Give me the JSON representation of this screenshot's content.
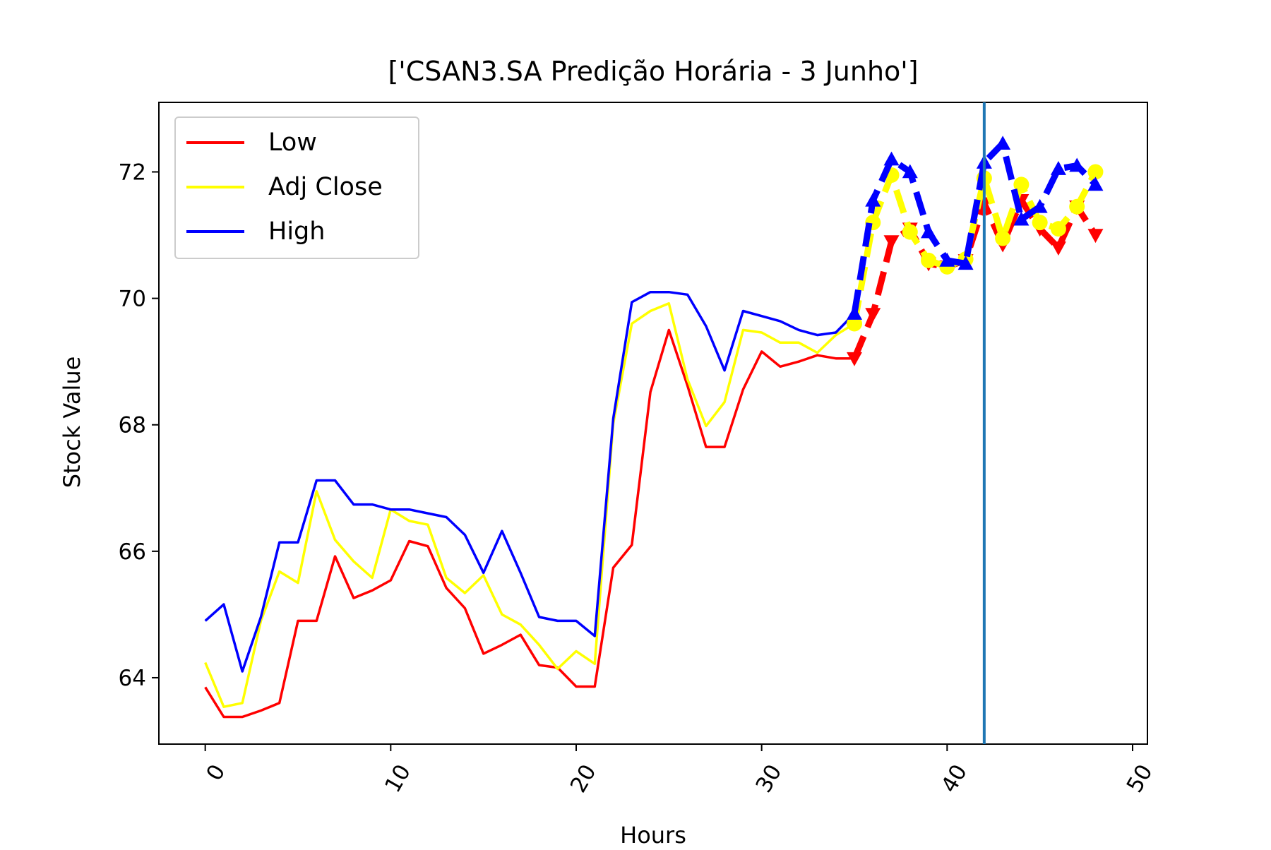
{
  "chart_data": {
    "type": "line",
    "title": "['CSAN3.SA Predição Horária - 3 Junho']",
    "xlabel": "Hours",
    "ylabel": "Stock Value",
    "xlim": [
      -2.5,
      50.8
    ],
    "ylim": [
      62.95,
      73.1
    ],
    "xticks": [
      0,
      10,
      20,
      30,
      40,
      50
    ],
    "xtick_labels": [
      "0",
      "10",
      "20",
      "30",
      "40",
      "50"
    ],
    "yticks": [
      64,
      66,
      68,
      70,
      72
    ],
    "ytick_labels": [
      "64",
      "66",
      "68",
      "70",
      "72"
    ],
    "xtick_rotation_deg": 60,
    "grid": false,
    "legend_position": "top-left",
    "vertical_line": {
      "x": 42,
      "color": "#1f77b4"
    },
    "series": [
      {
        "name": "Low",
        "color": "#ff0000",
        "x": [
          0,
          1,
          2,
          3,
          4,
          5,
          6,
          7,
          8,
          9,
          10,
          11,
          12,
          13,
          14,
          15,
          16,
          17,
          18,
          19,
          20,
          21,
          22,
          23,
          24,
          25,
          26,
          27,
          28,
          29,
          30,
          31,
          32,
          33,
          34,
          35
        ],
        "values": [
          63.85,
          63.38,
          63.38,
          63.48,
          63.6,
          64.9,
          64.9,
          65.92,
          65.26,
          65.38,
          65.54,
          66.16,
          66.08,
          65.42,
          65.1,
          64.38,
          64.52,
          64.68,
          64.2,
          64.16,
          63.86,
          63.86,
          65.74,
          66.1,
          68.52,
          69.5,
          68.62,
          67.65,
          67.65,
          68.56,
          69.16,
          68.92,
          69,
          69.1,
          69.05,
          69.05
        ],
        "pred_x": [
          35,
          36,
          37,
          38,
          39,
          40,
          41,
          42,
          43,
          44,
          45,
          46,
          47,
          48
        ],
        "pred_values": [
          69.05,
          69.75,
          70.9,
          71.1,
          70.55,
          70.5,
          70.6,
          71.5,
          70.85,
          71.55,
          71.1,
          70.8,
          71.45,
          71
        ],
        "pred_marker": "triangle-down"
      },
      {
        "name": "Adj Close",
        "color": "#ffff00",
        "x": [
          0,
          1,
          2,
          3,
          4,
          5,
          6,
          7,
          8,
          9,
          10,
          11,
          12,
          13,
          14,
          15,
          16,
          17,
          18,
          19,
          20,
          21,
          22,
          23,
          24,
          25,
          26,
          27,
          28,
          29,
          30,
          31,
          32,
          33,
          34,
          35
        ],
        "values": [
          64.24,
          63.54,
          63.6,
          64.9,
          65.68,
          65.5,
          66.95,
          66.18,
          65.84,
          65.58,
          66.66,
          66.48,
          66.42,
          65.58,
          65.34,
          65.62,
          65,
          64.84,
          64.52,
          64.14,
          64.42,
          64.22,
          68.02,
          69.6,
          69.8,
          69.92,
          68.72,
          67.98,
          68.36,
          69.5,
          69.46,
          69.3,
          69.3,
          69.14,
          69.42,
          69.6
        ],
        "pred_x": [
          35,
          36,
          37,
          38,
          39,
          40,
          41,
          42,
          43,
          44,
          45,
          46,
          47,
          48
        ],
        "pred_values": [
          69.6,
          71.2,
          71.95,
          71.05,
          70.6,
          70.5,
          70.62,
          71.9,
          70.95,
          71.8,
          71.2,
          71.1,
          71.45,
          72
        ],
        "pred_marker": "circle"
      },
      {
        "name": "High",
        "color": "#0000ff",
        "x": [
          0,
          1,
          2,
          3,
          4,
          5,
          6,
          7,
          8,
          9,
          10,
          11,
          12,
          13,
          14,
          15,
          16,
          17,
          18,
          19,
          20,
          21,
          22,
          23,
          24,
          25,
          26,
          27,
          28,
          29,
          30,
          31,
          32,
          33,
          34,
          35
        ],
        "values": [
          64.9,
          65.16,
          64.1,
          64.96,
          66.14,
          66.14,
          67.12,
          67.12,
          66.74,
          66.74,
          66.66,
          66.66,
          66.6,
          66.54,
          66.26,
          65.66,
          66.32,
          65.66,
          64.96,
          64.9,
          64.9,
          64.66,
          68.1,
          69.94,
          70.1,
          70.1,
          70.06,
          69.56,
          68.86,
          69.8,
          69.72,
          69.64,
          69.5,
          69.42,
          69.46,
          69.76
        ],
        "pred_x": [
          35,
          36,
          37,
          38,
          39,
          40,
          41,
          42,
          43,
          44,
          45,
          46,
          47,
          48
        ],
        "pred_values": [
          69.76,
          71.55,
          72.2,
          72,
          71.05,
          70.6,
          70.55,
          72.15,
          72.45,
          71.25,
          71.45,
          72.05,
          72.1,
          71.8
        ],
        "pred_marker": "triangle-up"
      }
    ]
  }
}
